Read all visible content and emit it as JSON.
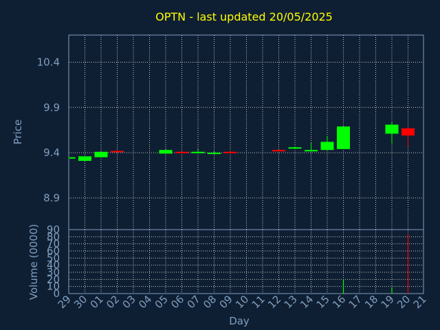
{
  "chart_data": {
    "type": "candlestick",
    "title": "OPTN - last updated 20/05/2025",
    "xlabel": "Day",
    "price_ylabel": "Price",
    "volume_ylabel": "Volume (0000)",
    "price_ylim": [
      8.55,
      10.7
    ],
    "price_ticks": [
      "8.9",
      "9.4",
      "9.9",
      "10.4"
    ],
    "volume_ylim": [
      0,
      90
    ],
    "volume_ticks": [
      "0",
      "10",
      "20",
      "30",
      "40",
      "50",
      "60",
      "70",
      "80",
      "90"
    ],
    "day_ticks": [
      "29",
      "30",
      "01",
      "02",
      "03",
      "04",
      "05",
      "06",
      "07",
      "08",
      "09",
      "10",
      "11",
      "12",
      "13",
      "14",
      "15",
      "16",
      "17",
      "18",
      "19",
      "20",
      "21"
    ],
    "up_color": "#00ff00",
    "down_color": "#ff0000",
    "candles": [
      {
        "day": "29",
        "open": 9.34,
        "high": 9.35,
        "low": 9.33,
        "close": 9.35,
        "volume": 0
      },
      {
        "day": "30",
        "open": 9.31,
        "high": 9.36,
        "low": 9.31,
        "close": 9.36,
        "volume": 0
      },
      {
        "day": "01",
        "open": 9.35,
        "high": 9.41,
        "low": 9.35,
        "close": 9.41,
        "volume": 0
      },
      {
        "day": "02",
        "open": 9.42,
        "high": 9.43,
        "low": 9.41,
        "close": 9.41,
        "volume": 0
      },
      {
        "day": "05",
        "open": 9.39,
        "high": 9.44,
        "low": 9.39,
        "close": 9.43,
        "volume": 0
      },
      {
        "day": "06",
        "open": 9.41,
        "high": 9.41,
        "low": 9.39,
        "close": 9.4,
        "volume": 0
      },
      {
        "day": "07",
        "open": 9.4,
        "high": 9.44,
        "low": 9.39,
        "close": 9.41,
        "volume": 0
      },
      {
        "day": "08",
        "open": 9.39,
        "high": 9.42,
        "low": 9.39,
        "close": 9.4,
        "volume": 0
      },
      {
        "day": "09",
        "open": 9.41,
        "high": 9.42,
        "low": 9.4,
        "close": 9.4,
        "volume": 0
      },
      {
        "day": "12",
        "open": 9.43,
        "high": 9.44,
        "low": 9.42,
        "close": 9.42,
        "volume": 0
      },
      {
        "day": "13",
        "open": 9.45,
        "high": 9.47,
        "low": 9.44,
        "close": 9.46,
        "volume": 0
      },
      {
        "day": "14",
        "open": 9.42,
        "high": 9.51,
        "low": 9.41,
        "close": 9.43,
        "volume": 0
      },
      {
        "day": "15",
        "open": 9.43,
        "high": 9.58,
        "low": 9.43,
        "close": 9.52,
        "volume": 0
      },
      {
        "day": "16",
        "open": 9.44,
        "high": 9.69,
        "low": 9.44,
        "close": 9.69,
        "volume": 20
      },
      {
        "day": "19",
        "open": 9.61,
        "high": 9.74,
        "low": 9.5,
        "close": 9.71,
        "volume": 8
      },
      {
        "day": "20",
        "open": 9.67,
        "high": 9.68,
        "low": 9.47,
        "close": 9.59,
        "volume": 84
      }
    ]
  }
}
